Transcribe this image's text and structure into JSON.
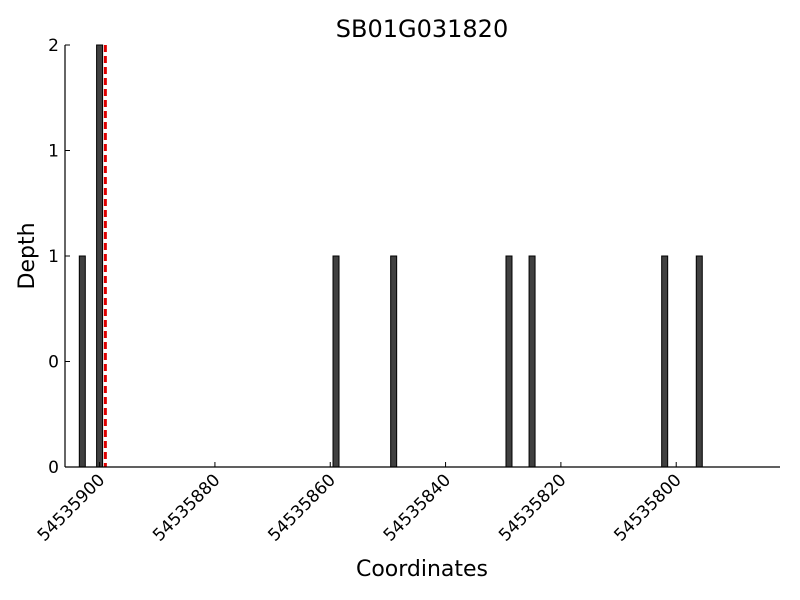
{
  "chart_data": {
    "type": "bar",
    "title": "SB01G031820",
    "xlabel": "Coordinates",
    "ylabel": "Depth",
    "x_reversed": true,
    "xlim": [
      54535906,
      54535782
    ],
    "ylim": [
      0,
      2
    ],
    "x_ticks": [
      54535900,
      54535880,
      54535860,
      54535840,
      54535820,
      54535800
    ],
    "x_tick_labels": [
      "54535900",
      "54535880",
      "54535860",
      "54535840",
      "54535820",
      "54535800"
    ],
    "y_ticks": [
      0,
      0.5,
      1,
      1.5,
      2
    ],
    "y_tick_labels": [
      "0",
      "0",
      "1",
      "1",
      "2"
    ],
    "bar_color": "#404040",
    "bar_edge_color": "#000000",
    "marker_line": {
      "x": 54535899,
      "color": "#e00000",
      "style": "dashed"
    },
    "series": [
      {
        "x": [
          54535903,
          54535900,
          54535859,
          54535849,
          54535829,
          54535825,
          54535802,
          54535796
        ],
        "values": [
          1,
          2,
          1,
          1,
          1,
          1,
          1,
          1
        ]
      }
    ],
    "grid": false,
    "legend": "none"
  }
}
